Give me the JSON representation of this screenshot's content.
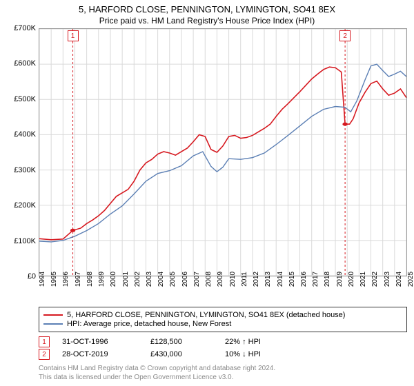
{
  "chart": {
    "type": "line",
    "title": "5, HARFORD CLOSE, PENNINGTON, LYMINGTON, SO41 8EX",
    "subtitle": "Price paid vs. HM Land Registry's House Price Index (HPI)",
    "title_fontsize": 13,
    "subtitle_fontsize": 12,
    "background_color": "#ffffff",
    "plot_border_color": "#999999",
    "grid_color": "#d9d9d9",
    "x_start_year": 1994,
    "x_end_year": 2025,
    "x_labels": [
      "1994",
      "1995",
      "1996",
      "1997",
      "1998",
      "1999",
      "2000",
      "2001",
      "2002",
      "2003",
      "2004",
      "2005",
      "2006",
      "2007",
      "2008",
      "2009",
      "2010",
      "2011",
      "2012",
      "2013",
      "2014",
      "2015",
      "2016",
      "2017",
      "2018",
      "2019",
      "2020",
      "2021",
      "2022",
      "2023",
      "2024",
      "2025"
    ],
    "ylim": [
      0,
      700000
    ],
    "ytick_step": 100000,
    "y_labels": [
      "£0",
      "£100K",
      "£200K",
      "£300K",
      "£400K",
      "£500K",
      "£600K",
      "£700K"
    ],
    "label_fontsize": 11,
    "tick_fontsize": 10,
    "series": [
      {
        "name": "property",
        "legend_label": "5, HARFORD CLOSE, PENNINGTON, LYMINGTON, SO41 8EX (detached house)",
        "color": "#d6181f",
        "line_width": 1.6,
        "data": [
          [
            1994.0,
            105000
          ],
          [
            1995.0,
            102000
          ],
          [
            1996.0,
            104000
          ],
          [
            1996.83,
            128500
          ],
          [
            1997.5,
            135000
          ],
          [
            1998.0,
            148000
          ],
          [
            1998.5,
            158000
          ],
          [
            1999.0,
            170000
          ],
          [
            1999.5,
            185000
          ],
          [
            2000.0,
            205000
          ],
          [
            2000.5,
            225000
          ],
          [
            2001.0,
            235000
          ],
          [
            2001.5,
            245000
          ],
          [
            2002.0,
            268000
          ],
          [
            2002.5,
            300000
          ],
          [
            2003.0,
            320000
          ],
          [
            2003.5,
            330000
          ],
          [
            2004.0,
            345000
          ],
          [
            2004.5,
            352000
          ],
          [
            2005.0,
            348000
          ],
          [
            2005.5,
            342000
          ],
          [
            2006.0,
            352000
          ],
          [
            2006.5,
            362000
          ],
          [
            2007.0,
            380000
          ],
          [
            2007.5,
            400000
          ],
          [
            2008.0,
            395000
          ],
          [
            2008.5,
            358000
          ],
          [
            2009.0,
            350000
          ],
          [
            2009.5,
            368000
          ],
          [
            2010.0,
            395000
          ],
          [
            2010.5,
            398000
          ],
          [
            2011.0,
            390000
          ],
          [
            2011.5,
            392000
          ],
          [
            2012.0,
            398000
          ],
          [
            2012.5,
            408000
          ],
          [
            2013.0,
            418000
          ],
          [
            2013.5,
            430000
          ],
          [
            2014.0,
            452000
          ],
          [
            2014.5,
            472000
          ],
          [
            2015.0,
            488000
          ],
          [
            2015.5,
            505000
          ],
          [
            2016.0,
            522000
          ],
          [
            2016.5,
            540000
          ],
          [
            2017.0,
            558000
          ],
          [
            2017.5,
            572000
          ],
          [
            2018.0,
            585000
          ],
          [
            2018.5,
            592000
          ],
          [
            2019.0,
            590000
          ],
          [
            2019.5,
            578000
          ],
          [
            2019.82,
            430000
          ],
          [
            2020.2,
            430000
          ],
          [
            2020.5,
            445000
          ],
          [
            2021.0,
            490000
          ],
          [
            2021.5,
            520000
          ],
          [
            2022.0,
            545000
          ],
          [
            2022.5,
            552000
          ],
          [
            2023.0,
            530000
          ],
          [
            2023.5,
            512000
          ],
          [
            2024.0,
            518000
          ],
          [
            2024.5,
            530000
          ],
          [
            2025.0,
            505000
          ]
        ]
      },
      {
        "name": "hpi",
        "legend_label": "HPI: Average price, detached house, New Forest",
        "color": "#5b7fb4",
        "line_width": 1.4,
        "data": [
          [
            1994.0,
            98000
          ],
          [
            1995.0,
            96000
          ],
          [
            1996.0,
            100000
          ],
          [
            1997.0,
            112000
          ],
          [
            1998.0,
            128000
          ],
          [
            1999.0,
            148000
          ],
          [
            2000.0,
            175000
          ],
          [
            2001.0,
            198000
          ],
          [
            2002.0,
            232000
          ],
          [
            2003.0,
            268000
          ],
          [
            2004.0,
            290000
          ],
          [
            2005.0,
            298000
          ],
          [
            2006.0,
            312000
          ],
          [
            2007.0,
            340000
          ],
          [
            2007.8,
            352000
          ],
          [
            2008.5,
            310000
          ],
          [
            2009.0,
            295000
          ],
          [
            2009.5,
            308000
          ],
          [
            2010.0,
            332000
          ],
          [
            2011.0,
            330000
          ],
          [
            2012.0,
            335000
          ],
          [
            2013.0,
            348000
          ],
          [
            2014.0,
            372000
          ],
          [
            2015.0,
            398000
          ],
          [
            2016.0,
            425000
          ],
          [
            2017.0,
            452000
          ],
          [
            2018.0,
            472000
          ],
          [
            2019.0,
            480000
          ],
          [
            2019.8,
            478000
          ],
          [
            2020.3,
            465000
          ],
          [
            2020.8,
            495000
          ],
          [
            2021.5,
            555000
          ],
          [
            2022.0,
            595000
          ],
          [
            2022.5,
            600000
          ],
          [
            2023.0,
            582000
          ],
          [
            2023.5,
            565000
          ],
          [
            2024.0,
            572000
          ],
          [
            2024.5,
            580000
          ],
          [
            2025.0,
            565000
          ]
        ]
      }
    ],
    "sale_markers": [
      {
        "n": "1",
        "year": 1996.83,
        "price": 128500,
        "color": "#d6181f"
      },
      {
        "n": "2",
        "year": 2019.82,
        "price": 430000,
        "color": "#d6181f"
      }
    ],
    "marker_line_color": "#d6181f",
    "marker_line_dash": "3,3"
  },
  "legend": {
    "border_color": "#333333",
    "fontsize": 11
  },
  "sales_table": {
    "rows": [
      {
        "n": "1",
        "date": "31-OCT-1996",
        "price": "£128,500",
        "delta": "22% ↑ HPI",
        "color": "#d6181f"
      },
      {
        "n": "2",
        "date": "28-OCT-2019",
        "price": "£430,000",
        "delta": "10% ↓ HPI",
        "color": "#d6181f"
      }
    ],
    "fontsize": 11
  },
  "footer": {
    "line1": "Contains HM Land Registry data © Crown copyright and database right 2024.",
    "line2": "This data is licensed under the Open Government Licence v3.0.",
    "color": "#888888",
    "fontsize": 10
  }
}
